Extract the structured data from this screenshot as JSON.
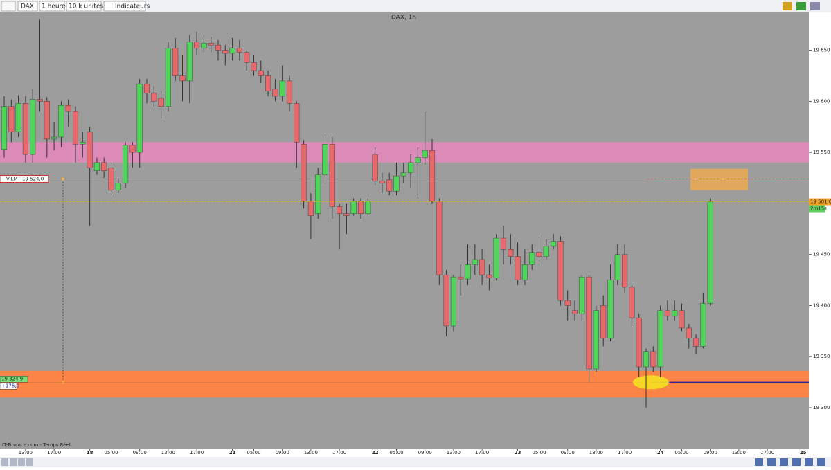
{
  "toolbar": {
    "symbol": "DAX",
    "period": "1 heure",
    "size": "10 k unités",
    "indicators": "Indicateurs"
  },
  "chart_data": {
    "type": "candlestick",
    "title": "DAX, 1h",
    "categories": [
      null,
      null,
      null,
      "13:00",
      null,
      null,
      null,
      "17:00",
      null,
      null,
      null,
      null,
      "18",
      null,
      null,
      "05:00",
      null,
      null,
      null,
      "09:00",
      null,
      null,
      null,
      "13:00",
      null,
      null,
      null,
      "17:00",
      null,
      null,
      null,
      null,
      "21",
      null,
      null,
      "05:00",
      null,
      null,
      null,
      "09:00",
      null,
      null,
      null,
      "13:00",
      null,
      null,
      null,
      "17:00",
      null,
      null,
      null,
      null,
      "22",
      null,
      null,
      "05:00",
      null,
      null,
      null,
      "09:00",
      null,
      null,
      null,
      "13:00",
      null,
      null,
      null,
      "17:00",
      null,
      null,
      null,
      null,
      "23",
      null,
      null,
      "05:00",
      null,
      null,
      null,
      "09:00",
      null,
      null,
      null,
      "13:00",
      null,
      null,
      null,
      "17:00",
      null,
      null,
      null,
      null,
      "24",
      null,
      null,
      "05:00",
      null,
      null,
      null,
      "09:00",
      null,
      null,
      null,
      "13:00",
      null,
      null,
      null,
      "17:00",
      null,
      null,
      null,
      null,
      "25"
    ],
    "open": [
      19553,
      19595,
      19570,
      19598,
      19548,
      19602,
      19600,
      19563,
      19565,
      19596,
      19590,
      19558,
      19570,
      19532,
      19540,
      19535,
      19513,
      19520,
      19557,
      19550,
      19617,
      19608,
      19603,
      19595,
      19652,
      19625,
      19620,
      19658,
      19652,
      19657,
      19655,
      19650,
      19647,
      19652,
      19648,
      19638,
      19630,
      19625,
      19612,
      19605,
      19620,
      19598,
      19558,
      19502,
      19490,
      19528,
      19558,
      19497,
      19490,
      19490,
      19502,
      19490,
      19548,
      19522,
      19523,
      19512,
      19527,
      19530,
      19540,
      19545,
      19552,
      19502,
      19430,
      19380,
      19428,
      19426,
      19440,
      19445,
      19430,
      19427,
      19466,
      19455,
      19448,
      19425,
      19440,
      19452,
      19448,
      19458,
      19463,
      19405,
      19395,
      19392,
      19428,
      19338,
      19400,
      19368,
      19425,
      19450,
      19418,
      19388,
      19340,
      19355,
      19340,
      19395,
      19390,
      19395,
      19378,
      19368,
      19360,
      19402,
      null,
      null,
      null,
      null,
      null,
      null,
      null,
      null,
      null,
      null,
      null,
      null,
      null
    ],
    "high": [
      19605,
      19602,
      19606,
      19605,
      19612,
      19680,
      19604,
      19580,
      19600,
      19602,
      19595,
      19570,
      19575,
      19545,
      19545,
      19540,
      19525,
      19560,
      19560,
      19622,
      19622,
      19615,
      19610,
      19658,
      19662,
      19645,
      19665,
      19668,
      19665,
      19663,
      19660,
      19655,
      19662,
      19660,
      19650,
      19645,
      19640,
      19630,
      19622,
      19635,
      19625,
      19600,
      19562,
      19510,
      19535,
      19565,
      19565,
      19500,
      19500,
      19505,
      19505,
      19505,
      19555,
      19530,
      19530,
      19540,
      19540,
      19548,
      19555,
      19590,
      19563,
      19505,
      19435,
      19430,
      19440,
      19460,
      19460,
      19455,
      19440,
      19470,
      19478,
      19470,
      19462,
      19455,
      19460,
      19470,
      19465,
      19470,
      19468,
      19415,
      19405,
      19430,
      19430,
      19400,
      19410,
      19440,
      19460,
      19460,
      19420,
      19392,
      19358,
      19360,
      19400,
      19405,
      19405,
      19402,
      19382,
      19372,
      19412,
      19505,
      null,
      null,
      null,
      null,
      null,
      null,
      null,
      null,
      null,
      null,
      null,
      null,
      null
    ],
    "low": [
      19545,
      19560,
      19565,
      19540,
      19540,
      19590,
      19545,
      19552,
      19555,
      19575,
      19540,
      19545,
      19478,
      19528,
      19525,
      19508,
      19510,
      19515,
      19535,
      19535,
      19598,
      19595,
      19583,
      19590,
      19620,
      19600,
      19598,
      19645,
      19648,
      19648,
      19640,
      19635,
      19640,
      19640,
      19630,
      19625,
      19618,
      19605,
      19600,
      19600,
      19590,
      19535,
      19495,
      19465,
      19485,
      19520,
      19485,
      19455,
      19470,
      19488,
      19485,
      19488,
      19518,
      19510,
      19508,
      19508,
      19520,
      19515,
      19505,
      19538,
      19500,
      19420,
      19370,
      19375,
      19410,
      19420,
      19430,
      19420,
      19415,
      19425,
      19440,
      19440,
      19420,
      19420,
      19435,
      19440,
      19445,
      19455,
      19400,
      19385,
      19385,
      19385,
      19325,
      19335,
      19360,
      19365,
      19420,
      19412,
      19380,
      19330,
      19300,
      19335,
      19330,
      19385,
      19385,
      19375,
      19358,
      19352,
      19358,
      19400,
      null,
      null,
      null,
      null,
      null,
      null,
      null,
      null,
      null,
      null,
      null,
      null,
      null
    ],
    "close": [
      19595,
      19570,
      19598,
      19548,
      19602,
      19600,
      19563,
      19565,
      19596,
      19590,
      19558,
      19560,
      19535,
      19540,
      19532,
      19513,
      19520,
      19557,
      19550,
      19617,
      19608,
      19600,
      19595,
      19652,
      19625,
      19620,
      19658,
      19652,
      19657,
      19655,
      19650,
      19647,
      19652,
      19648,
      19638,
      19630,
      19625,
      19610,
      19605,
      19620,
      19598,
      19560,
      19502,
      19488,
      19528,
      19558,
      19497,
      19490,
      19488,
      19502,
      19490,
      19502,
      19522,
      19520,
      19512,
      19527,
      19530,
      19540,
      19545,
      19552,
      19502,
      19430,
      19380,
      19428,
      19426,
      19440,
      19445,
      19430,
      19427,
      19466,
      19455,
      19448,
      19425,
      19440,
      19452,
      19448,
      19458,
      19463,
      19405,
      19400,
      19392,
      19428,
      19338,
      19395,
      19368,
      19425,
      19450,
      19418,
      19388,
      19340,
      19355,
      19340,
      19395,
      19390,
      19395,
      19378,
      19368,
      19360,
      19402,
      19501.6,
      null,
      null,
      null,
      null,
      null,
      null,
      null,
      null,
      null,
      null,
      null,
      null,
      null
    ],
    "up_color": "#4fd65a",
    "down_color": "#e8696c",
    "ylim": [
      19260,
      19687
    ],
    "yticks": [
      {
        "value": 19300,
        "label": "19 300"
      },
      {
        "value": 19350,
        "label": "19 350"
      },
      {
        "value": 19400,
        "label": "19 400"
      },
      {
        "value": 19450,
        "label": "19 450"
      },
      {
        "value": 19550,
        "label": "19 550"
      },
      {
        "value": 19600,
        "label": "19 600"
      },
      {
        "value": 19650,
        "label": "19 650"
      }
    ],
    "zones": [
      {
        "from": 19540,
        "to": 19560,
        "color": "#df8ab9"
      },
      {
        "from": 19310,
        "to": 19336,
        "color": "#ff8442"
      }
    ],
    "target_box": {
      "from": 19513,
      "to": 19534,
      "color": "#e8aa55"
    },
    "order": {
      "label": "V:LMT 19 524,0",
      "value": 19524
    },
    "position": {
      "label": "19 324,9",
      "value": 19324.9,
      "pnl": "+176,0"
    },
    "last_price": {
      "value": 19501.6,
      "label": "19 501,6",
      "timer": "2m15s"
    }
  },
  "footer": "IT-Finance.com - Temps Réel"
}
